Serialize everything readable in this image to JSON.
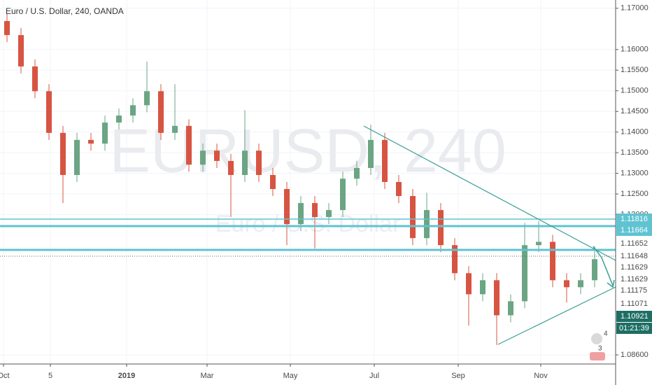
{
  "chart_data": {
    "type": "candlestick",
    "title": "Euro / U.S. Dollar, 240, OANDA",
    "watermark": "EURUSD, 240",
    "watermark_subtitle": "Euro / U.S. Dollar",
    "up_color": "#6ba583",
    "down_color": "#d75442",
    "open": [
      1.1669,
      1.1635,
      1.1559,
      1.1499,
      1.1398,
      1.1296,
      1.1381,
      1.1372,
      1.1423,
      1.144,
      1.1465,
      1.1499,
      1.1398,
      1.1415,
      1.1321,
      1.1355,
      1.133,
      1.1296,
      1.1355,
      1.1296,
      1.1262,
      1.1177,
      1.1228,
      1.1194,
      1.1211,
      1.1287,
      1.1313,
      1.1381,
      1.1279,
      1.1245,
      1.1143,
      1.1211,
      1.1126,
      1.1058,
      1.1007,
      1.1041,
      1.0956,
      1.099,
      1.1126,
      1.1134,
      1.1041,
      1.1024,
      1.1041
    ],
    "high": [
      1.1686,
      1.1652,
      1.1576,
      1.1516,
      1.1415,
      1.1398,
      1.1398,
      1.144,
      1.1457,
      1.1482,
      1.1571,
      1.1516,
      1.1516,
      1.1431,
      1.1372,
      1.1372,
      1.1347,
      1.1453,
      1.1372,
      1.1313,
      1.1279,
      1.1245,
      1.1245,
      1.1228,
      1.1304,
      1.133,
      1.1418,
      1.1398,
      1.1296,
      1.1262,
      1.1253,
      1.1228,
      1.1143,
      1.1075,
      1.1058,
      1.1058,
      1.1007,
      1.118,
      1.1184,
      1.1151,
      1.1058,
      1.1058,
      1.1123
    ],
    "low": [
      1.1618,
      1.1542,
      1.1482,
      1.1381,
      1.1228,
      1.1279,
      1.1355,
      1.1355,
      1.1406,
      1.1423,
      1.1448,
      1.1381,
      1.1381,
      1.1304,
      1.1304,
      1.1313,
      1.1194,
      1.1279,
      1.1279,
      1.1245,
      1.1126,
      1.116,
      1.1118,
      1.1177,
      1.1194,
      1.127,
      1.1296,
      1.1262,
      1.1228,
      1.1126,
      1.1126,
      1.1109,
      1.1041,
      1.0931,
      1.099,
      1.0884,
      1.0939,
      1.0973,
      1.1109,
      1.1024,
      1.0987,
      1.1007,
      1.1024
    ],
    "close": [
      1.1635,
      1.1559,
      1.1499,
      1.1398,
      1.1296,
      1.1381,
      1.1372,
      1.1423,
      1.144,
      1.1465,
      1.1499,
      1.1398,
      1.1415,
      1.1321,
      1.1355,
      1.133,
      1.1296,
      1.1355,
      1.1296,
      1.1262,
      1.1177,
      1.1228,
      1.1194,
      1.1211,
      1.1287,
      1.1313,
      1.1381,
      1.1279,
      1.1245,
      1.1143,
      1.1211,
      1.1126,
      1.1058,
      1.1007,
      1.1041,
      1.0956,
      1.099,
      1.1126,
      1.1134,
      1.1041,
      1.1024,
      1.1041,
      1.1092
    ],
    "xlim": [
      0,
      44
    ],
    "xticks": [
      {
        "value": 0.25,
        "label": "Oct"
      },
      {
        "value": 3.6,
        "label": "5"
      },
      {
        "value": 9.05,
        "label": "2019"
      },
      {
        "value": 14.8,
        "label": "Mar"
      },
      {
        "value": 20.75,
        "label": "May"
      },
      {
        "value": 26.75,
        "label": "Jul"
      },
      {
        "value": 32.75,
        "label": "Sep"
      },
      {
        "value": 38.65,
        "label": "Nov"
      }
    ],
    "ylim": [
      1.0838,
      1.172
    ],
    "yticks": [
      {
        "value": 1.17,
        "label": "1.17000"
      },
      {
        "value": 1.16,
        "label": "1.16000"
      },
      {
        "value": 1.155,
        "label": "1.15500"
      },
      {
        "value": 1.15,
        "label": "1.15000"
      },
      {
        "value": 1.145,
        "label": "1.14500"
      },
      {
        "value": 1.14,
        "label": "1.14000"
      },
      {
        "value": 1.135,
        "label": "1.13500"
      },
      {
        "value": 1.13,
        "label": "1.13000"
      },
      {
        "value": 1.125,
        "label": "1.12500"
      },
      {
        "value": 1.12,
        "label": "1.12000"
      },
      {
        "value": 1.086,
        "label": "1.08600"
      }
    ],
    "level_labels": [
      "1.11816",
      "1.11664",
      "1.11652",
      "1.11648",
      "1.11629",
      "1.11629",
      "1.11175",
      "1.11071"
    ],
    "current_price": "1.10921",
    "countdown": "01:21:39",
    "badges": [
      "4",
      "3"
    ],
    "grid": true
  }
}
